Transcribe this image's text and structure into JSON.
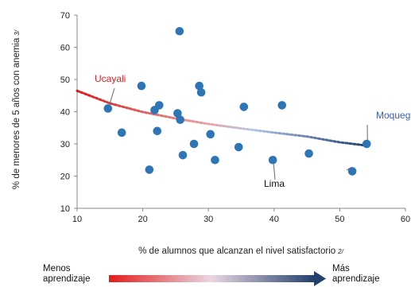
{
  "chart_data": {
    "type": "scatter",
    "xlabel": "% de alumnos que alcanzan  el nivel satisfactorio",
    "xlabel_note": "2/",
    "ylabel": "% de menores de 5 años con anemia",
    "ylabel_note": "3/",
    "xlim": [
      10,
      60
    ],
    "ylim": [
      10,
      70
    ],
    "x_ticks": [
      "10",
      "20",
      "30",
      "40",
      "50",
      "60"
    ],
    "y_ticks": [
      "10",
      "20",
      "30",
      "40",
      "50",
      "60",
      "70"
    ],
    "points": [
      {
        "x": 14.7,
        "y": 41
      },
      {
        "x": 16.8,
        "y": 33.5
      },
      {
        "x": 19.8,
        "y": 48
      },
      {
        "x": 21.0,
        "y": 22
      },
      {
        "x": 21.8,
        "y": 40.5
      },
      {
        "x": 22.2,
        "y": 34
      },
      {
        "x": 22.5,
        "y": 42
      },
      {
        "x": 25.3,
        "y": 39.5
      },
      {
        "x": 25.6,
        "y": 65
      },
      {
        "x": 25.7,
        "y": 37.5
      },
      {
        "x": 26.1,
        "y": 26.5
      },
      {
        "x": 27.8,
        "y": 30
      },
      {
        "x": 28.6,
        "y": 48
      },
      {
        "x": 28.9,
        "y": 46
      },
      {
        "x": 30.3,
        "y": 33
      },
      {
        "x": 31.0,
        "y": 25
      },
      {
        "x": 34.6,
        "y": 29
      },
      {
        "x": 35.4,
        "y": 41.5
      },
      {
        "x": 39.8,
        "y": 25
      },
      {
        "x": 41.2,
        "y": 42
      },
      {
        "x": 45.3,
        "y": 27
      },
      {
        "x": 51.9,
        "y": 21.5
      },
      {
        "x": 54.1,
        "y": 30
      }
    ],
    "trendline": {
      "type": "power",
      "x": [
        10,
        15,
        20,
        25,
        30,
        35,
        40,
        45,
        50,
        54
      ],
      "y": [
        46.5,
        42.6,
        39.9,
        37.9,
        36.2,
        34.8,
        33.5,
        32.3,
        30.5,
        29.5
      ]
    },
    "annotations": [
      {
        "text": "Ucayali",
        "color": "#e02020",
        "point": {
          "x": 14.7,
          "y": 41
        }
      },
      {
        "text": "Moquegua",
        "color": "#3a5fb0",
        "point": {
          "x": 54.1,
          "y": 30
        }
      },
      {
        "text": "Lima",
        "color": "#111111",
        "point": {
          "x": 51.9,
          "y": 21.5
        }
      }
    ],
    "point_color": "#2e75b6",
    "grid": false
  },
  "gradient_legend": {
    "left_label_line1": "Menos",
    "left_label_line2": "aprendizaje",
    "right_label_line1": "Más",
    "right_label_line2": "aprendizaje",
    "start_color": "#e41b1b",
    "end_color": "#24406e"
  }
}
